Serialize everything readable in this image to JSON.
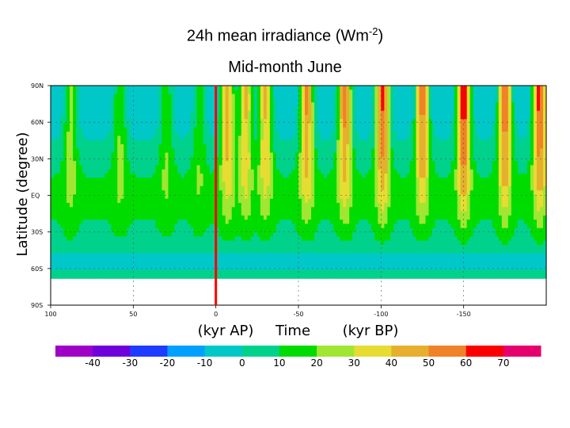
{
  "title": {
    "main": "24h mean irradiance (Wm",
    "sup": "-2",
    "close": ")",
    "sub": "Mid-month June"
  },
  "chart_data": {
    "type": "heatmap",
    "title": "24h mean irradiance (Wm-2)",
    "subtitle": "Mid-month June",
    "ylabel": "Latitude (degree)",
    "xlabel_parts": [
      "(kyr AP)",
      "Time",
      "(kyr BP)"
    ],
    "x_ticks": [
      "100",
      "50",
      "0",
      "-50",
      "-100",
      "-150"
    ],
    "x_tick_values": [
      100,
      50,
      0,
      -50,
      -100,
      -150
    ],
    "xlim": [
      100,
      -200
    ],
    "y_ticks": [
      "90N",
      "60N",
      "30N",
      "EQ",
      "30S",
      "60S",
      "90S"
    ],
    "y_tick_values": [
      90,
      60,
      30,
      0,
      -30,
      -60,
      -90
    ],
    "ylim": [
      -90,
      90
    ],
    "present_marker_x": 0,
    "colorbar": {
      "colors": [
        "#9f00c6",
        "#6e00dc",
        "#1e3cff",
        "#00a0ff",
        "#00c8c8",
        "#00d28c",
        "#00dc00",
        "#a0e632",
        "#e6dc32",
        "#e6af2d",
        "#f08228",
        "#fa0000",
        "#e6006e"
      ],
      "tick_labels": [
        "-40",
        "-30",
        "-20",
        "-10",
        "0",
        "10",
        "20",
        "30",
        "40",
        "50",
        "60",
        "70"
      ]
    },
    "anomaly_peaks_kyr": [
      -7,
      -18,
      -30,
      -55,
      -78,
      -101,
      -125,
      -150,
      -175,
      -196,
      10,
      30,
      58,
      88
    ],
    "peak_amplitudes": [
      50,
      46,
      46,
      55,
      58,
      64,
      58,
      70,
      62,
      66,
      20,
      22,
      25,
      28
    ]
  }
}
